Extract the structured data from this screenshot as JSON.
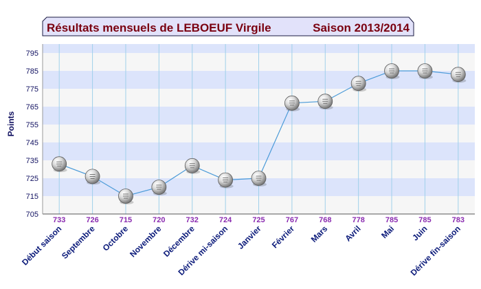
{
  "chart_data": {
    "type": "line",
    "title": "Résultats mensuels de  LEBOEUF Virgile",
    "subtitle": "Saison 2013/2014",
    "xlabel": "",
    "ylabel": "Points",
    "ylim": [
      705,
      800
    ],
    "yticks": [
      705,
      715,
      725,
      735,
      745,
      755,
      765,
      775,
      785,
      795
    ],
    "grid": true,
    "categories": [
      "Début saison",
      "Septembre",
      "Octobre",
      "Novembre",
      "Décembre",
      "Dérive mi-saison",
      "Janvier",
      "Février",
      "Mars",
      "Avril",
      "Mai",
      "Juin",
      "Dérive fin-saison"
    ],
    "series": [
      {
        "values": [
          733,
          726,
          715,
          720,
          732,
          724,
          725,
          767,
          768,
          778,
          785,
          785,
          783
        ]
      }
    ],
    "data_labels": [
      "733",
      "726",
      "715",
      "720",
      "732",
      "724",
      "725",
      "767",
      "768",
      "778",
      "785",
      "785",
      "783"
    ],
    "colors": {
      "band_light": "#f6f6f6",
      "band_blue": "#dce4fb",
      "line": "#4a9ad8",
      "vgrid": "#9fd0ea",
      "title_bg": "#e2e2fa",
      "title_text": "#7a0010"
    }
  }
}
